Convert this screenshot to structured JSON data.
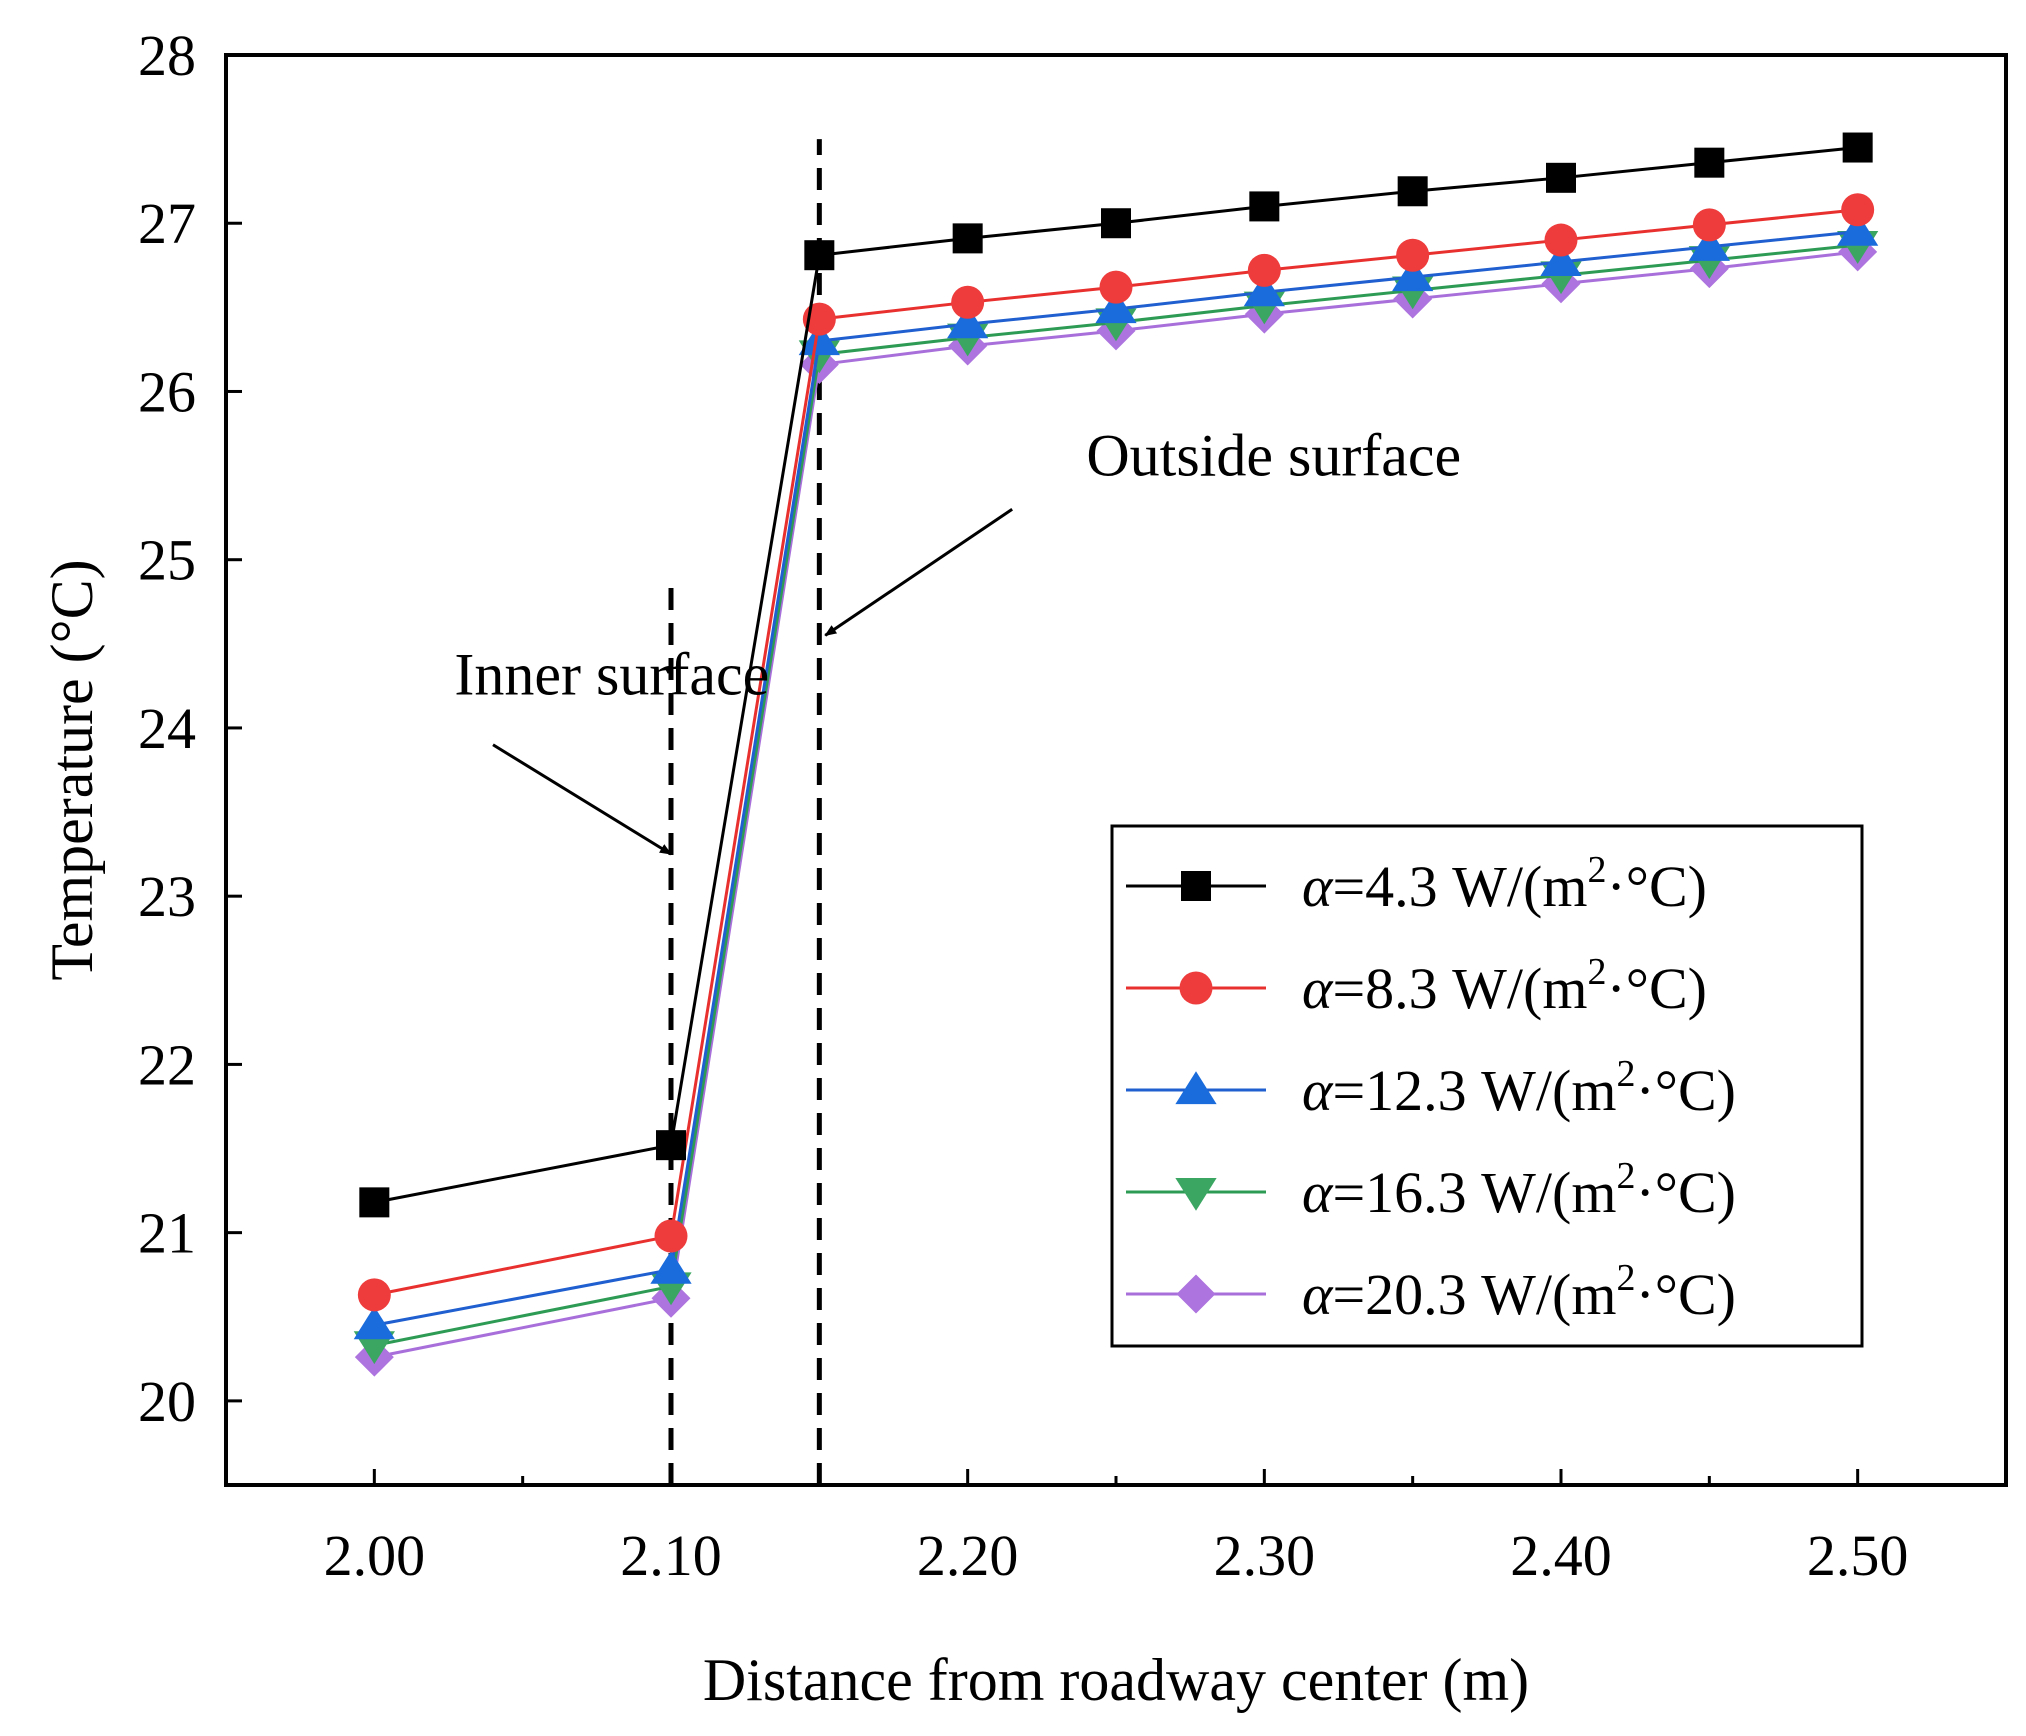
{
  "chart_data": {
    "type": "line",
    "title": "",
    "xlabel": "Distance from roadway center (m)",
    "ylabel": "Temperature (°C)",
    "xlim": [
      1.95,
      2.55
    ],
    "ylim": [
      19.5,
      28
    ],
    "xticks": [
      2.0,
      2.1,
      2.2,
      2.3,
      2.4,
      2.5
    ],
    "xtick_labels": [
      "2.00",
      "2.10",
      "2.20",
      "2.30",
      "2.40",
      "2.50"
    ],
    "xminor_ticks": [
      2.05,
      2.15,
      2.25,
      2.35,
      2.45
    ],
    "yticks": [
      20,
      21,
      22,
      23,
      24,
      25,
      26,
      27,
      28
    ],
    "ytick_labels": [
      "20",
      "21",
      "22",
      "23",
      "24",
      "25",
      "26",
      "27",
      "28"
    ],
    "x": [
      2.0,
      2.1,
      2.15,
      2.2,
      2.25,
      2.3,
      2.35,
      2.4,
      2.45,
      2.5
    ],
    "series": [
      {
        "name": "α=4.3 W/(m2·°C)",
        "label_prefix": "α",
        "label_main": "=4.3 W/(m",
        "label_sup": "2",
        "label_suffix": "·°C)",
        "color": "#000000",
        "marker_color": "#000000",
        "marker": "square",
        "values": [
          21.18,
          21.52,
          26.81,
          26.91,
          27.0,
          27.1,
          27.19,
          27.27,
          27.36,
          27.45
        ]
      },
      {
        "name": "α=8.3 W/(m2·°C)",
        "label_prefix": "α",
        "label_main": "=8.3 W/(m",
        "label_sup": "2",
        "label_suffix": "·°C)",
        "color": "#e8312f",
        "marker_color": "#ee3b3b",
        "marker": "circle",
        "values": [
          20.63,
          20.98,
          26.43,
          26.53,
          26.62,
          26.72,
          26.81,
          26.9,
          26.99,
          27.08
        ]
      },
      {
        "name": "α=12.3 W/(m2·°C)",
        "label_prefix": "α",
        "label_main": "=12.3 W/(m",
        "label_sup": "2",
        "label_suffix": "·°C)",
        "color": "#1f5fcf",
        "marker_color": "#1a6bdc",
        "marker": "triangle-up",
        "values": [
          20.45,
          20.78,
          26.3,
          26.4,
          26.49,
          26.59,
          26.68,
          26.77,
          26.86,
          26.95
        ]
      },
      {
        "name": "α=16.3 W/(m2·°C)",
        "label_prefix": "α",
        "label_main": "=16.3 W/(m",
        "label_sup": "2",
        "label_suffix": "·°C)",
        "color": "#2e9b55",
        "marker_color": "#3aa662",
        "marker": "triangle-down",
        "values": [
          20.33,
          20.68,
          26.22,
          26.32,
          26.41,
          26.51,
          26.6,
          26.69,
          26.78,
          26.87
        ]
      },
      {
        "name": "α=20.3 W/(m2·°C)",
        "label_prefix": "α",
        "label_main": "=20.3 W/(m",
        "label_sup": "2",
        "label_suffix": "·°C)",
        "color": "#a86fdb",
        "marker_color": "#ad73de",
        "marker": "diamond",
        "values": [
          20.26,
          20.61,
          26.16,
          26.27,
          26.36,
          26.46,
          26.55,
          26.64,
          26.73,
          26.83
        ]
      }
    ],
    "reference_lines": [
      {
        "x": 2.1,
        "y_range": [
          19.5,
          24.85
        ],
        "style": "dashed"
      },
      {
        "x": 2.15,
        "y_range": [
          19.5,
          27.5
        ],
        "style": "dashed"
      }
    ],
    "annotations": [
      {
        "text": "Inner surface",
        "text_x": 2.027,
        "text_y": 24.2,
        "arrow_from": [
          2.04,
          23.9
        ],
        "arrow_to": [
          2.1,
          23.25
        ]
      },
      {
        "text": "Outside surface",
        "text_x": 2.24,
        "text_y": 25.5,
        "arrow_from": [
          2.215,
          25.3
        ],
        "arrow_to": [
          2.152,
          24.55
        ]
      }
    ],
    "legend_position": "lower-right",
    "grid": false
  }
}
